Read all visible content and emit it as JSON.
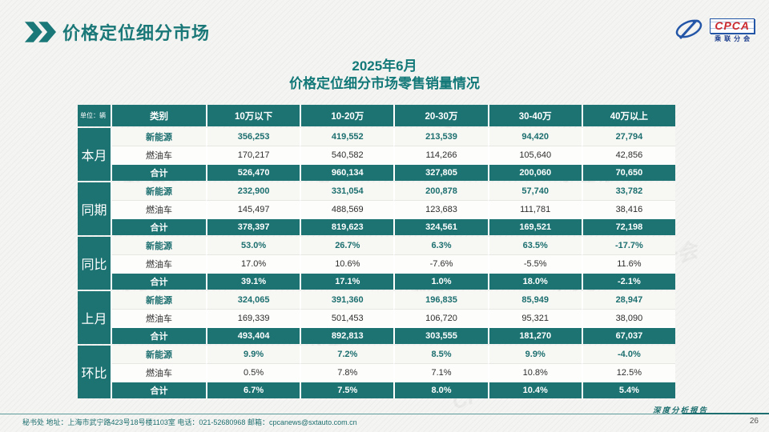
{
  "slide": {
    "header_title": "价格定位细分市场",
    "logo": {
      "name": "CPCA",
      "subtitle": "乘联分会"
    },
    "watermark_text": "CPCA 乘联分会",
    "footer_text": "秘书处  地址：上海市武宁路423号18号楼1103室  电话：021-52680968   邮箱：cpcanews@sxtauto.com.cn",
    "report_label": "深度分析报告",
    "page_number": "26"
  },
  "colors": {
    "teal_cell": "#1d7272",
    "teal_title": "#127878",
    "teal_text": "#1c6f6f",
    "logo_blue": "#2456a8",
    "logo_red": "#cc2a2f"
  },
  "chart_data": {
    "type": "table",
    "title": "2025年6月",
    "subtitle": "价格定位细分市场零售销量情况",
    "unit": "单位：辆",
    "columns": [
      "类别",
      "10万以下",
      "10-20万",
      "20-30万",
      "30-40万",
      "40万以上"
    ],
    "groups": [
      {
        "label": "本月",
        "rows": [
          {
            "label": "新能源",
            "type": "nev",
            "values": [
              "356,253",
              "419,552",
              "213,539",
              "94,420",
              "27,794"
            ]
          },
          {
            "label": "燃油车",
            "type": "ice",
            "values": [
              "170,217",
              "540,582",
              "114,266",
              "105,640",
              "42,856"
            ]
          },
          {
            "label": "合计",
            "type": "total",
            "values": [
              "526,470",
              "960,134",
              "327,805",
              "200,060",
              "70,650"
            ]
          }
        ]
      },
      {
        "label": "同期",
        "rows": [
          {
            "label": "新能源",
            "type": "nev",
            "values": [
              "232,900",
              "331,054",
              "200,878",
              "57,740",
              "33,782"
            ]
          },
          {
            "label": "燃油车",
            "type": "ice",
            "values": [
              "145,497",
              "488,569",
              "123,683",
              "111,781",
              "38,416"
            ]
          },
          {
            "label": "合计",
            "type": "total",
            "values": [
              "378,397",
              "819,623",
              "324,561",
              "169,521",
              "72,198"
            ]
          }
        ]
      },
      {
        "label": "同比",
        "rows": [
          {
            "label": "新能源",
            "type": "nev",
            "values": [
              "53.0%",
              "26.7%",
              "6.3%",
              "63.5%",
              "-17.7%"
            ]
          },
          {
            "label": "燃油车",
            "type": "ice",
            "values": [
              "17.0%",
              "10.6%",
              "-7.6%",
              "-5.5%",
              "11.6%"
            ]
          },
          {
            "label": "合计",
            "type": "total",
            "values": [
              "39.1%",
              "17.1%",
              "1.0%",
              "18.0%",
              "-2.1%"
            ]
          }
        ]
      },
      {
        "label": "上月",
        "rows": [
          {
            "label": "新能源",
            "type": "nev",
            "values": [
              "324,065",
              "391,360",
              "196,835",
              "85,949",
              "28,947"
            ]
          },
          {
            "label": "燃油车",
            "type": "ice",
            "values": [
              "169,339",
              "501,453",
              "106,720",
              "95,321",
              "38,090"
            ]
          },
          {
            "label": "合计",
            "type": "total",
            "values": [
              "493,404",
              "892,813",
              "303,555",
              "181,270",
              "67,037"
            ]
          }
        ]
      },
      {
        "label": "环比",
        "rows": [
          {
            "label": "新能源",
            "type": "nev",
            "values": [
              "9.9%",
              "7.2%",
              "8.5%",
              "9.9%",
              "-4.0%"
            ]
          },
          {
            "label": "燃油车",
            "type": "ice",
            "values": [
              "0.5%",
              "7.8%",
              "7.1%",
              "10.8%",
              "12.5%"
            ]
          },
          {
            "label": "合计",
            "type": "total",
            "values": [
              "6.7%",
              "7.5%",
              "8.0%",
              "10.4%",
              "5.4%"
            ]
          }
        ]
      }
    ]
  }
}
